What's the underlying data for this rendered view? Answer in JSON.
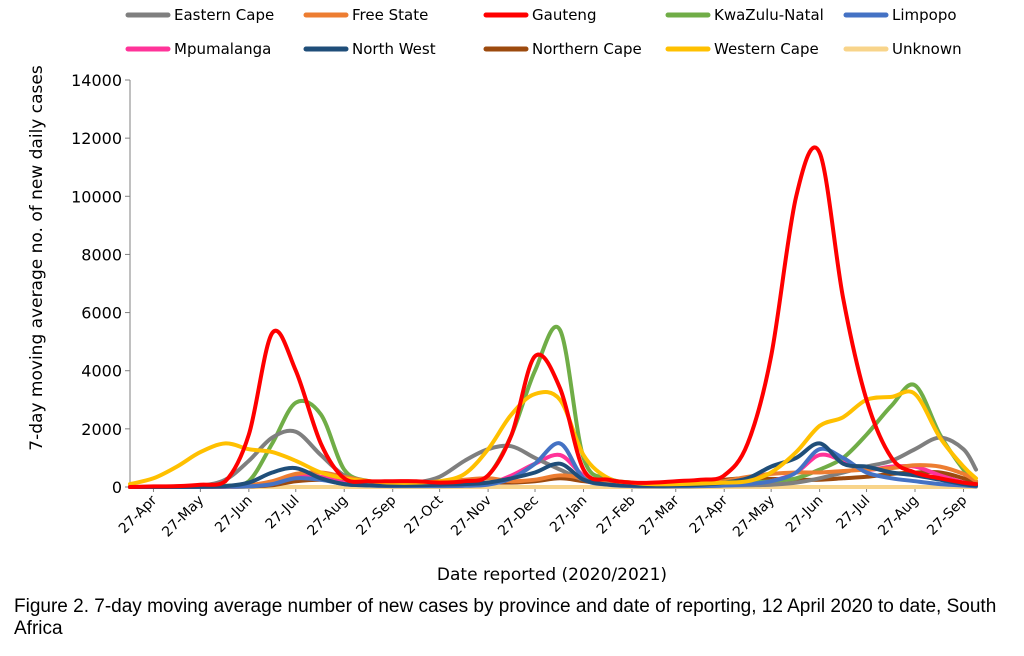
{
  "figure": {
    "caption": "Figure 2. 7-day moving average number of new cases by province and date of reporting, 12 April 2020 to date, South Africa"
  },
  "chart_data": {
    "type": "line",
    "title": "",
    "xlabel": "Date reported (2020/2021)",
    "ylabel": "7-day moving average no. of new daily cases",
    "ylim": [
      0,
      14000
    ],
    "yticks": [
      0,
      2000,
      4000,
      6000,
      8000,
      10000,
      12000,
      14000
    ],
    "xticks": [
      "27-Apr",
      "27-May",
      "27-Jun",
      "27-Jul",
      "27-Aug",
      "27-Sep",
      "27-Oct",
      "27-Nov",
      "27-Dec",
      "27-Jan",
      "27-Feb",
      "27-Mar",
      "27-Apr",
      "27-May",
      "27-Jun",
      "27-Jul",
      "27-Aug",
      "27-Sep"
    ],
    "x": [
      "2020-04-12",
      "2020-04-27",
      "2020-05-12",
      "2020-05-27",
      "2020-06-12",
      "2020-06-27",
      "2020-07-12",
      "2020-07-27",
      "2020-08-12",
      "2020-08-27",
      "2020-09-12",
      "2020-09-27",
      "2020-10-12",
      "2020-10-27",
      "2020-11-12",
      "2020-11-27",
      "2020-12-12",
      "2020-12-27",
      "2021-01-12",
      "2021-01-27",
      "2021-02-12",
      "2021-02-27",
      "2021-03-12",
      "2021-03-27",
      "2021-04-12",
      "2021-04-27",
      "2021-05-12",
      "2021-05-27",
      "2021-06-12",
      "2021-06-27",
      "2021-07-12",
      "2021-07-27",
      "2021-08-12",
      "2021-08-27",
      "2021-09-12",
      "2021-09-27",
      "2021-10-05"
    ],
    "grid": false,
    "legend_position": "top",
    "series": [
      {
        "name": "Eastern Cape",
        "color": "#7f7f7f",
        "values": [
          0,
          5,
          20,
          40,
          250,
          900,
          1700,
          1900,
          1100,
          400,
          150,
          80,
          150,
          350,
          900,
          1300,
          1400,
          1000,
          600,
          250,
          150,
          80,
          50,
          40,
          40,
          50,
          60,
          80,
          150,
          300,
          500,
          700,
          900,
          1300,
          1700,
          1300,
          600
        ]
      },
      {
        "name": "Free State",
        "color": "#ed7d31",
        "values": [
          0,
          0,
          5,
          10,
          20,
          60,
          200,
          450,
          500,
          350,
          200,
          150,
          150,
          160,
          250,
          300,
          200,
          250,
          400,
          300,
          100,
          50,
          30,
          40,
          80,
          200,
          350,
          450,
          500,
          500,
          550,
          600,
          650,
          750,
          700,
          450,
          200
        ]
      },
      {
        "name": "Gauteng",
        "color": "#ff0000",
        "values": [
          0,
          20,
          30,
          80,
          200,
          1800,
          5300,
          4000,
          1500,
          300,
          200,
          200,
          200,
          150,
          200,
          400,
          1800,
          4500,
          3400,
          600,
          250,
          150,
          150,
          200,
          250,
          400,
          1500,
          4500,
          10000,
          11500,
          6500,
          3000,
          1000,
          500,
          300,
          150,
          100
        ]
      },
      {
        "name": "KwaZulu-Natal",
        "color": "#70ad47",
        "values": [
          0,
          5,
          10,
          20,
          40,
          200,
          1500,
          2900,
          2500,
          600,
          200,
          150,
          150,
          150,
          200,
          400,
          1800,
          4000,
          5400,
          1000,
          300,
          150,
          100,
          100,
          100,
          120,
          150,
          200,
          300,
          600,
          1000,
          1800,
          2800,
          3500,
          1800,
          600,
          200
        ]
      },
      {
        "name": "Limpopo",
        "color": "#4472c4",
        "values": [
          0,
          0,
          0,
          5,
          10,
          20,
          100,
          300,
          250,
          100,
          50,
          30,
          30,
          30,
          40,
          80,
          300,
          800,
          1500,
          300,
          80,
          30,
          20,
          20,
          30,
          50,
          100,
          200,
          500,
          1300,
          1000,
          500,
          300,
          200,
          100,
          50,
          20
        ]
      },
      {
        "name": "Mpumalanga",
        "color": "#ff3399",
        "values": [
          0,
          0,
          0,
          5,
          10,
          30,
          150,
          400,
          350,
          150,
          60,
          40,
          40,
          40,
          50,
          100,
          400,
          800,
          1100,
          400,
          100,
          40,
          30,
          30,
          40,
          60,
          100,
          200,
          500,
          1100,
          900,
          600,
          700,
          700,
          400,
          150,
          50
        ]
      },
      {
        "name": "North West",
        "color": "#1f4e79",
        "values": [
          0,
          0,
          5,
          10,
          30,
          150,
          500,
          650,
          300,
          100,
          60,
          50,
          60,
          80,
          100,
          150,
          300,
          500,
          800,
          250,
          80,
          50,
          40,
          50,
          80,
          150,
          300,
          700,
          1000,
          1500,
          800,
          700,
          500,
          400,
          250,
          100,
          50
        ]
      },
      {
        "name": "Northern Cape",
        "color": "#9c4a0e",
        "values": [
          0,
          0,
          0,
          5,
          10,
          20,
          60,
          200,
          250,
          200,
          120,
          80,
          70,
          80,
          100,
          150,
          150,
          200,
          300,
          200,
          100,
          60,
          50,
          80,
          150,
          250,
          300,
          280,
          250,
          250,
          300,
          350,
          450,
          500,
          500,
          300,
          150
        ]
      },
      {
        "name": "Western Cape",
        "color": "#ffc000",
        "values": [
          100,
          300,
          700,
          1200,
          1500,
          1300,
          1200,
          900,
          500,
          300,
          200,
          150,
          150,
          200,
          450,
          1300,
          2500,
          3200,
          3000,
          1100,
          300,
          150,
          100,
          100,
          120,
          150,
          200,
          500,
          1200,
          2100,
          2400,
          3000,
          3100,
          3200,
          1700,
          700,
          300
        ]
      },
      {
        "name": "Unknown",
        "color": "#f8d48a",
        "values": [
          0,
          0,
          0,
          0,
          0,
          0,
          0,
          0,
          0,
          0,
          0,
          0,
          0,
          0,
          0,
          0,
          0,
          0,
          0,
          0,
          0,
          0,
          0,
          0,
          0,
          0,
          0,
          0,
          0,
          0,
          0,
          0,
          0,
          0,
          0,
          0,
          0
        ]
      }
    ]
  }
}
